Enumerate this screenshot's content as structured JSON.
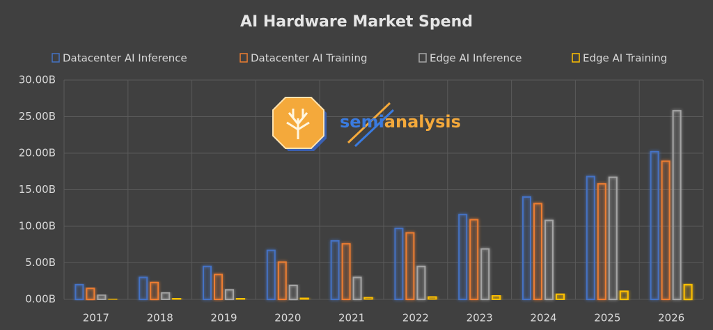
{
  "chart_data": {
    "type": "bar",
    "title": "AI Hardware Market Spend",
    "watermark": [
      "semi",
      "analysis"
    ],
    "categories": [
      "2017",
      "2018",
      "2019",
      "2020",
      "2021",
      "2022",
      "2023",
      "2024",
      "2025",
      "2026"
    ],
    "series": [
      {
        "name": "Datacenter AI Inference",
        "color": "#4472c4",
        "values": [
          2.0,
          3.0,
          4.5,
          6.7,
          8.0,
          9.7,
          11.6,
          14.0,
          16.8,
          20.2
        ]
      },
      {
        "name": "Datacenter AI Training",
        "color": "#ed7d31",
        "values": [
          1.5,
          2.3,
          3.4,
          5.1,
          7.6,
          9.1,
          10.9,
          13.1,
          15.8,
          18.9
        ]
      },
      {
        "name": "Edge AI Inference",
        "color": "#a5a5a5",
        "values": [
          0.6,
          0.9,
          1.3,
          1.9,
          3.0,
          4.5,
          6.9,
          10.8,
          16.7,
          25.8
        ]
      },
      {
        "name": "Edge AI Training",
        "color": "#ffc000",
        "values": [
          0.05,
          0.15,
          0.15,
          0.2,
          0.3,
          0.35,
          0.5,
          0.7,
          1.1,
          2.0
        ]
      }
    ],
    "ylim": [
      0,
      30
    ],
    "yticks": [
      {
        "value": 0,
        "label": "0.00B"
      },
      {
        "value": 5,
        "label": "5.00B"
      },
      {
        "value": 10,
        "label": "10.00B"
      },
      {
        "value": 15,
        "label": "15.00B"
      },
      {
        "value": 20,
        "label": "20.00B"
      },
      {
        "value": 25,
        "label": "25.00B"
      },
      {
        "value": 30,
        "label": "30.00B"
      }
    ],
    "grid": true,
    "legend": "top"
  }
}
